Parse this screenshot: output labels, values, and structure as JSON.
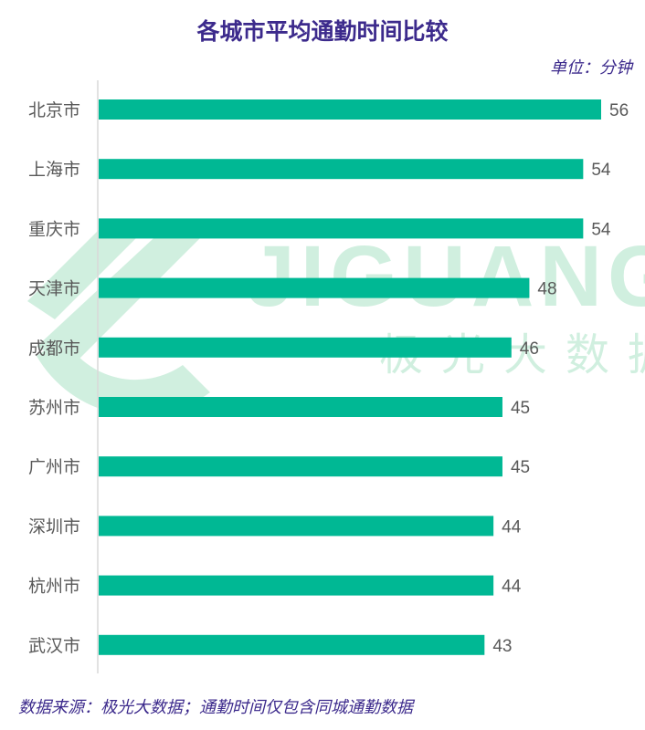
{
  "chart_data": {
    "type": "bar",
    "orientation": "horizontal",
    "title": "各城市平均通勤时间比较",
    "unit_note": "单位：分钟",
    "source_note": "数据来源：极光大数据；通勤时间仅包含同城通勤数据",
    "categories": [
      "北京市",
      "上海市",
      "重庆市",
      "天津市",
      "成都市",
      "苏州市",
      "广州市",
      "深圳市",
      "杭州市",
      "武汉市"
    ],
    "values": [
      56,
      54,
      54,
      48,
      46,
      45,
      45,
      44,
      44,
      43
    ],
    "xlim": [
      0,
      60
    ],
    "grid": false,
    "data_labels": true
  },
  "watermark": {
    "brand_en": "JIGUANG",
    "brand_cn": "极光大数据"
  },
  "colors": {
    "bar": "#00B894",
    "title": "#3C2A8C",
    "note": "#3C2A8C",
    "watermark": "#2EB872"
  }
}
